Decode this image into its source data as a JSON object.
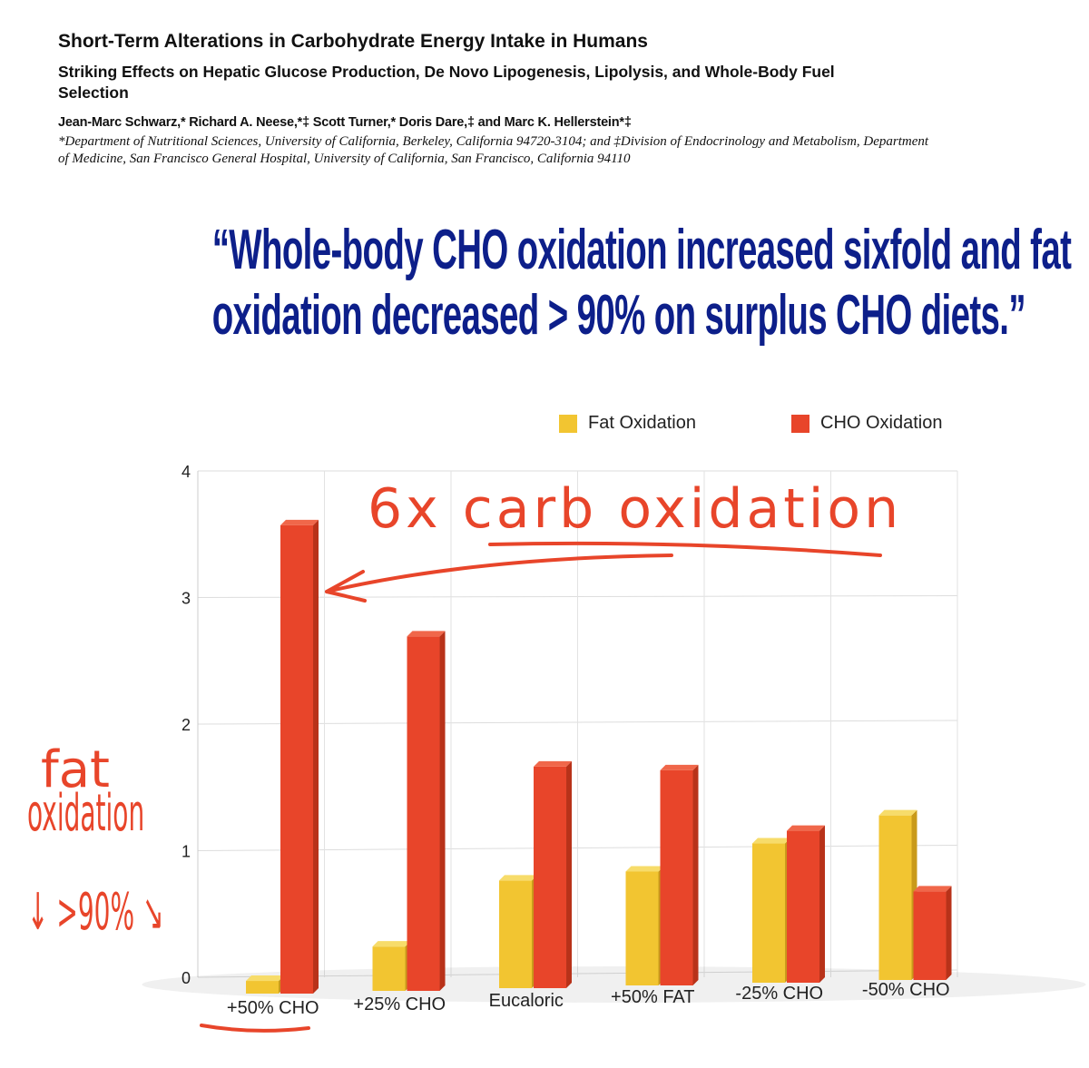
{
  "paper": {
    "title": "Short-Term Alterations in Carbohydrate Energy Intake in Humans",
    "subtitle": "Striking Effects on Hepatic Glucose Production, De Novo Lipogenesis, Lipolysis, and Whole-Body Fuel Selection",
    "authors": "Jean-Marc Schwarz,* Richard A. Neese,*‡ Scott Turner,* Doris Dare,‡ and Marc K. Hellerstein*‡",
    "affiliations": "*Department of Nutritional Sciences, University of California, Berkeley, California 94720-3104; and ‡Division of Endocrinology and Metabolism, Department of Medicine, San Francisco General Hospital, University of California, San Francisco, California 94110"
  },
  "quote": {
    "line1": "“Whole-body CHO oxidation increased sixfold and fat",
    "line2": "oxidation decreased > 90% on surplus CHO diets.”"
  },
  "annotations": {
    "carb": "6x carb oxidation",
    "fat_line1": "fat",
    "fat_line2": "oxidation",
    "fat_line3": "↓ >90% ↘"
  },
  "chart_data": {
    "type": "bar",
    "style": "3d-clustered",
    "categories": [
      "+50% CHO",
      "+25% CHO",
      "Eucaloric",
      "+50% FAT",
      "-25% CHO",
      "-50% CHO"
    ],
    "series": [
      {
        "name": "Fat Oxidation",
        "color": "#f2c531",
        "values": [
          0.1,
          0.35,
          0.85,
          0.9,
          1.1,
          1.3
        ]
      },
      {
        "name": "CHO Oxidation",
        "color": "#e8452a",
        "values": [
          3.7,
          2.8,
          1.75,
          1.7,
          1.2,
          0.7
        ]
      }
    ],
    "ylim": [
      0,
      4
    ],
    "yticks": [
      "0",
      "1",
      "2",
      "3",
      "4"
    ],
    "grid": true,
    "legend": "top-right"
  }
}
